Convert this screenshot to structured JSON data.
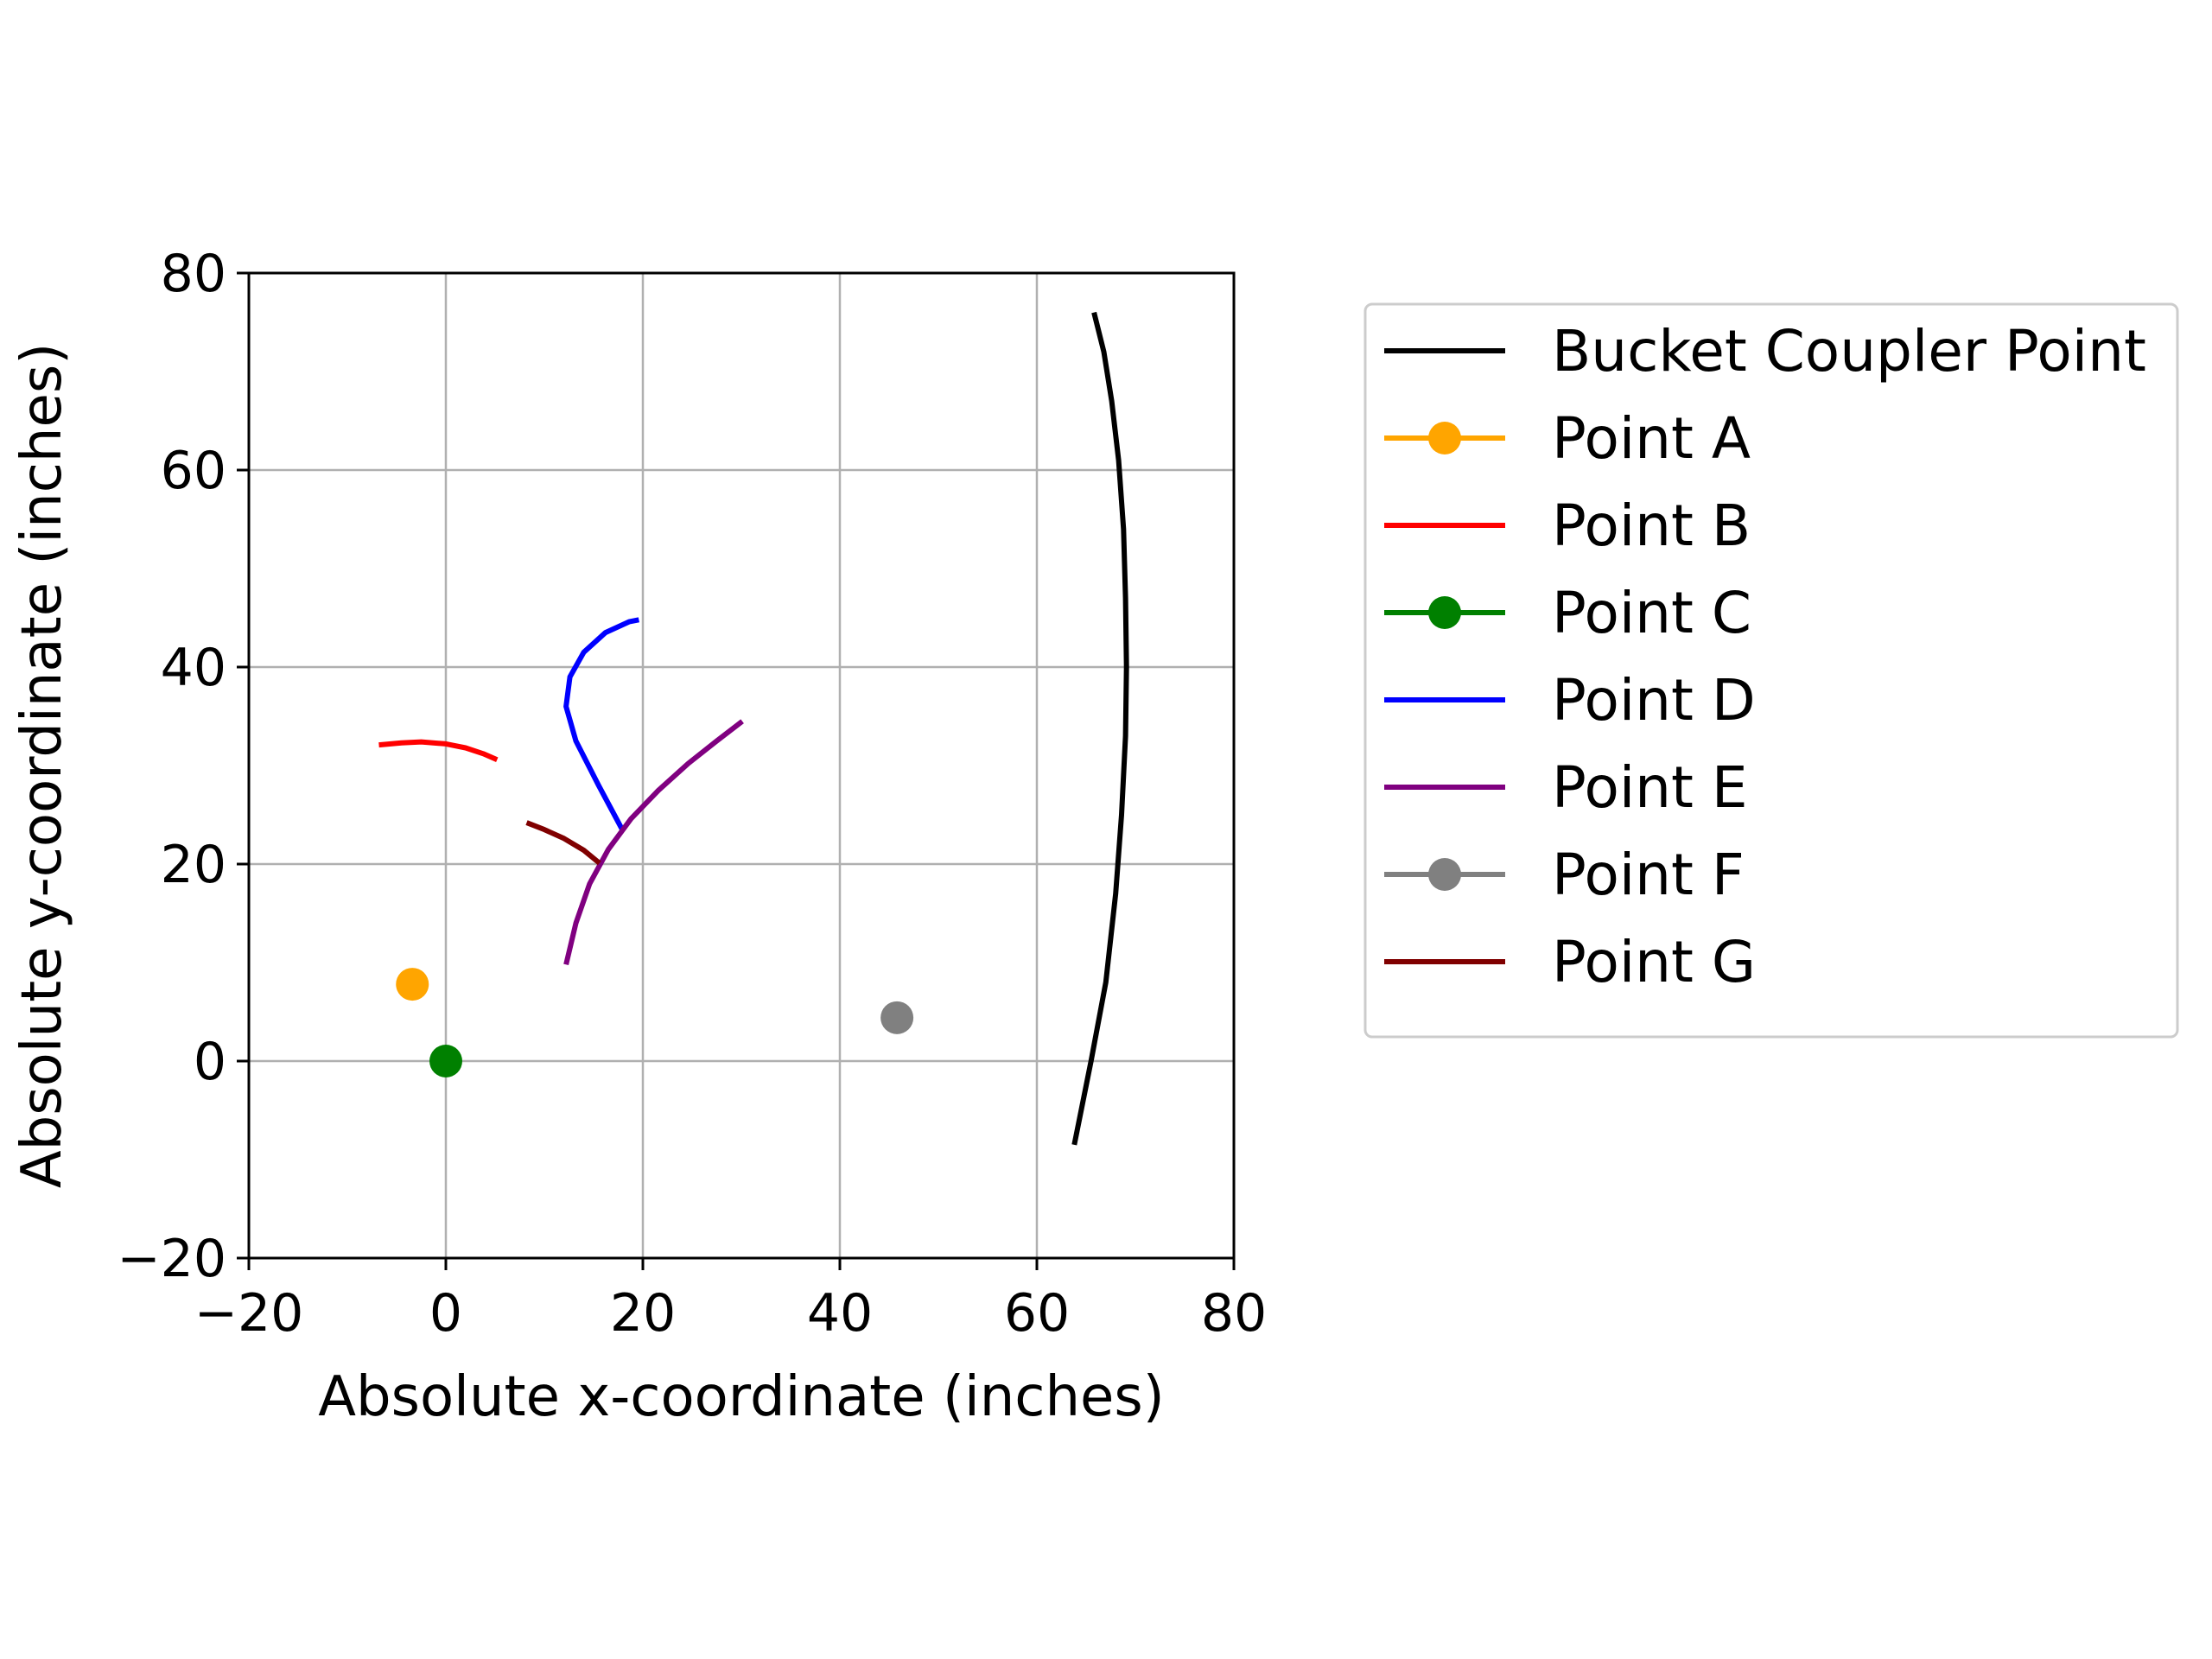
{
  "chart_data": {
    "type": "line",
    "title": "",
    "xlabel": "Absolute x-coordinate (inches)",
    "ylabel": "Absolute y-coordinate (inches)",
    "xlim": [
      -20,
      80
    ],
    "ylim": [
      -20,
      80
    ],
    "xticks": [
      -20,
      0,
      20,
      40,
      60,
      80
    ],
    "yticks": [
      -20,
      0,
      20,
      40,
      60,
      80
    ],
    "xtick_labels": [
      "−20",
      "0",
      "20",
      "40",
      "60",
      "80"
    ],
    "ytick_labels": [
      "−20",
      "0",
      "20",
      "40",
      "60",
      "80"
    ],
    "grid": true,
    "legend_placement": "outside-right",
    "series": [
      {
        "name": "Bucket Coupler Point",
        "color": "#000000",
        "marker": false,
        "x": [
          63.8,
          65.5,
          67.0,
          68.0,
          68.6,
          69.0,
          69.1,
          69.0,
          68.8,
          68.3,
          67.6,
          66.8,
          65.8
        ],
        "y": [
          -8.5,
          0,
          8,
          17,
          25,
          33,
          40,
          47,
          54,
          61,
          67,
          72,
          76
        ]
      },
      {
        "name": "Point A",
        "color": "#ffa500",
        "marker": true,
        "x": [
          -3.4
        ],
        "y": [
          7.8
        ]
      },
      {
        "name": "Point B",
        "color": "#ff0000",
        "marker": false,
        "x": [
          -6.8,
          -4.5,
          -2.5,
          0,
          2.0,
          3.8,
          5.2
        ],
        "y": [
          32.1,
          32.3,
          32.4,
          32.2,
          31.8,
          31.2,
          30.6
        ]
      },
      {
        "name": "Point C",
        "color": "#008000",
        "marker": true,
        "x": [
          0
        ],
        "y": [
          0
        ]
      },
      {
        "name": "Point D",
        "color": "#0000ff",
        "marker": false,
        "x": [
          17.9,
          15.5,
          13.2,
          12.2,
          12.6,
          14.0,
          16.2,
          18.6,
          19.6
        ],
        "y": [
          23.5,
          28,
          32.5,
          36,
          39,
          41.5,
          43.5,
          44.6,
          44.8
        ]
      },
      {
        "name": "Point E",
        "color": "#800080",
        "marker": false,
        "x": [
          12.2,
          13.2,
          14.6,
          16.5,
          18.8,
          21.6,
          24.6,
          27.5,
          30.1
        ],
        "y": [
          9.8,
          14,
          18,
          21.5,
          24.6,
          27.5,
          30.2,
          32.5,
          34.5
        ]
      },
      {
        "name": "Point F",
        "color": "#808080",
        "marker": true,
        "x": [
          45.8
        ],
        "y": [
          4.4
        ]
      },
      {
        "name": "Point G",
        "color": "#800000",
        "marker": false,
        "x": [
          8.2,
          10.0,
          12.0,
          14.0,
          15.6
        ],
        "y": [
          24.2,
          23.5,
          22.6,
          21.4,
          20.1
        ]
      }
    ]
  }
}
